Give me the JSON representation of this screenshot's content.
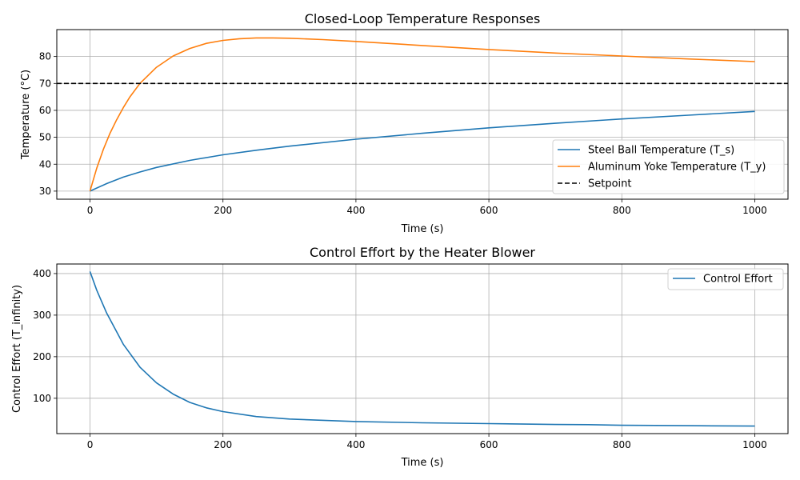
{
  "chart_data": [
    {
      "type": "line",
      "title": "Closed-Loop Temperature Responses",
      "xlabel": "Time (s)",
      "ylabel": "Temperature (°C)",
      "xlim": [
        -50,
        1050
      ],
      "ylim": [
        27,
        90
      ],
      "xticks": [
        0,
        200,
        400,
        600,
        800,
        1000
      ],
      "xtick_labels": [
        "0",
        "200",
        "400",
        "600",
        "800",
        "1000"
      ],
      "yticks": [
        30,
        40,
        50,
        60,
        70,
        80
      ],
      "ytick_labels": [
        "30",
        "40",
        "50",
        "60",
        "70",
        "80"
      ],
      "grid": true,
      "legend_position": "bottom-right",
      "series": [
        {
          "name": "Steel Ball Temperature (T_s)",
          "color": "#1f77b4",
          "x": [
            0,
            25,
            50,
            75,
            100,
            150,
            200,
            250,
            300,
            400,
            500,
            600,
            700,
            800,
            900,
            1000
          ],
          "y": [
            30,
            32.8,
            35.2,
            37.1,
            38.8,
            41.4,
            43.5,
            45.2,
            46.7,
            49.3,
            51.5,
            53.5,
            55.2,
            56.8,
            58.2,
            59.6
          ]
        },
        {
          "name": "Aluminum Yoke Temperature (T_y)",
          "color": "#ff7f0e",
          "x": [
            0,
            10,
            20,
            30,
            40,
            50,
            60,
            75,
            100,
            125,
            150,
            175,
            200,
            225,
            250,
            275,
            300,
            350,
            400,
            500,
            600,
            700,
            800,
            900,
            1000
          ],
          "y": [
            30,
            38.5,
            45.5,
            51.5,
            56.5,
            61,
            65,
            70,
            76,
            80.2,
            83,
            84.9,
            86,
            86.6,
            86.9,
            86.9,
            86.8,
            86.3,
            85.6,
            84.1,
            82.6,
            81.3,
            80.2,
            79.1,
            78.1
          ]
        },
        {
          "name": "Setpoint",
          "color": "#000000",
          "style": "dashed",
          "y_constant": 70
        }
      ]
    },
    {
      "type": "line",
      "title": "Control Effort by the Heater Blower",
      "xlabel": "Time (s)",
      "ylabel": "Control Effort (T_infinity)",
      "xlim": [
        -50,
        1050
      ],
      "ylim": [
        15,
        423
      ],
      "xticks": [
        0,
        200,
        400,
        600,
        800,
        1000
      ],
      "xtick_labels": [
        "0",
        "200",
        "400",
        "600",
        "800",
        "1000"
      ],
      "yticks": [
        100,
        200,
        300,
        400
      ],
      "ytick_labels": [
        "100",
        "200",
        "300",
        "400"
      ],
      "grid": true,
      "legend_position": "top-right",
      "series": [
        {
          "name": "Control Effort",
          "color": "#1f77b4",
          "x": [
            0,
            10,
            25,
            50,
            75,
            100,
            125,
            150,
            175,
            200,
            250,
            300,
            400,
            500,
            600,
            700,
            750,
            800,
            900,
            1000
          ],
          "y": [
            405,
            360,
            305,
            230,
            175,
            137,
            110,
            90,
            77,
            68,
            56,
            50,
            44,
            41,
            39,
            37,
            36.5,
            35,
            34,
            33
          ]
        }
      ]
    }
  ]
}
